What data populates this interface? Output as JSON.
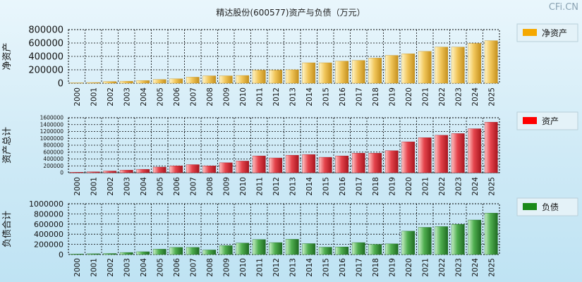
{
  "title": "精达股份(600577)资产与负债（万元）",
  "watermark": "CFi.CN",
  "chart_data": [
    {
      "type": "bar",
      "name": "net-assets",
      "ylabel": "净资产",
      "legend": "净资产",
      "color": "#f5a800",
      "grad": [
        "#fff4c6",
        "#f1c65a",
        "#c5901d"
      ],
      "ylim": [
        0,
        800000
      ],
      "yticks": [
        0,
        200000,
        400000,
        600000,
        800000
      ],
      "tick_labels": [
        "0",
        "200000",
        "400000",
        "600000",
        "800000"
      ],
      "categories": [
        "2000",
        "2001",
        "2002",
        "2003",
        "2004",
        "2005",
        "2006",
        "2007",
        "2008",
        "2009",
        "2010",
        "2011",
        "2012",
        "2013",
        "2014",
        "2015",
        "2016",
        "2017",
        "2018",
        "2019",
        "2020",
        "2021",
        "2022",
        "2023",
        "2024",
        "2025"
      ],
      "values": [
        5000,
        10000,
        25000,
        30000,
        40000,
        55000,
        65000,
        90000,
        110000,
        110000,
        115000,
        195000,
        195000,
        200000,
        305000,
        305000,
        330000,
        340000,
        375000,
        415000,
        440000,
        475000,
        540000,
        540000,
        595000,
        635000
      ]
    },
    {
      "type": "bar",
      "name": "total-assets",
      "ylabel": "资产总计",
      "legend": "资产",
      "color": "#ff0000",
      "grad": [
        "#ffc4c4",
        "#e5444c",
        "#a8161f"
      ],
      "ylim": [
        0,
        1600000
      ],
      "yticks": [
        0,
        200000,
        400000,
        600000,
        800000,
        1000000,
        1200000,
        1400000,
        1600000
      ],
      "tick_labels": [
        "0",
        "200000",
        "400000",
        "600000",
        "800000",
        "1000000",
        "1200000",
        "1400000",
        "1600000"
      ],
      "categories": [
        "2000",
        "2001",
        "2002",
        "2003",
        "2004",
        "2005",
        "2006",
        "2007",
        "2008",
        "2009",
        "2010",
        "2011",
        "2012",
        "2013",
        "2014",
        "2015",
        "2016",
        "2017",
        "2018",
        "2019",
        "2020",
        "2021",
        "2022",
        "2023",
        "2024",
        "2025"
      ],
      "values": [
        15000,
        25000,
        50000,
        75000,
        100000,
        165000,
        200000,
        235000,
        200000,
        290000,
        340000,
        490000,
        430000,
        510000,
        530000,
        450000,
        490000,
        570000,
        570000,
        640000,
        900000,
        1020000,
        1090000,
        1140000,
        1280000,
        1470000
      ]
    },
    {
      "type": "bar",
      "name": "total-liabilities",
      "ylabel": "负债合计",
      "legend": "负债",
      "color": "#1a8a1a",
      "grad": [
        "#c8f0c8",
        "#4fae4f",
        "#1f6b22"
      ],
      "ylim": [
        0,
        1000000
      ],
      "yticks": [
        0,
        200000,
        400000,
        600000,
        800000,
        1000000
      ],
      "tick_labels": [
        "0",
        "200000",
        "400000",
        "600000",
        "800000",
        "1000000"
      ],
      "categories": [
        "2000",
        "2001",
        "2002",
        "2003",
        "2004",
        "2005",
        "2006",
        "2007",
        "2008",
        "2009",
        "2010",
        "2011",
        "2012",
        "2013",
        "2014",
        "2015",
        "2016",
        "2017",
        "2018",
        "2019",
        "2020",
        "2021",
        "2022",
        "2023",
        "2024",
        "2025"
      ],
      "values": [
        10000,
        15000,
        20000,
        40000,
        55000,
        105000,
        140000,
        140000,
        90000,
        175000,
        225000,
        295000,
        235000,
        300000,
        215000,
        145000,
        150000,
        235000,
        200000,
        210000,
        460000,
        535000,
        550000,
        595000,
        680000,
        815000
      ]
    }
  ]
}
